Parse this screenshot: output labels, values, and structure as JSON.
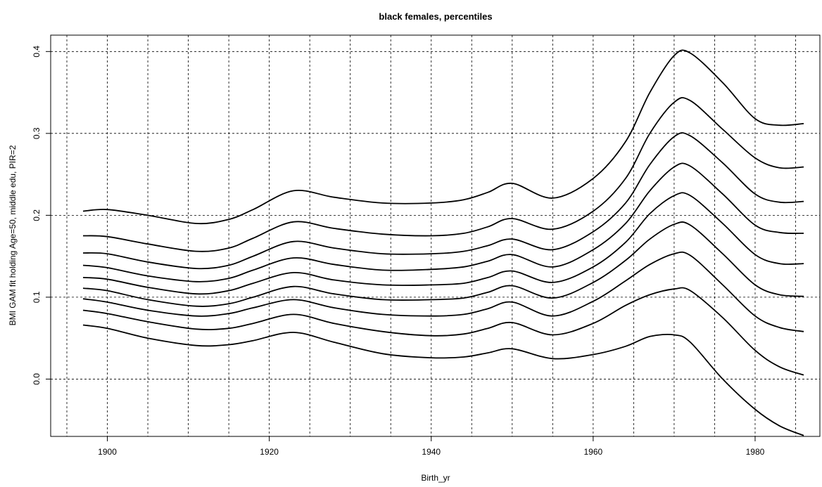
{
  "chart_data": {
    "type": "line",
    "title": "black females, percentiles",
    "xlabel": "Birth_yr",
    "ylabel": "BMI GAM fit holding Age=50, middle edu, PIR=2",
    "xlim": [
      1893,
      1988
    ],
    "ylim": [
      -0.07,
      0.42
    ],
    "x_ticks": [
      1900,
      1920,
      1940,
      1960,
      1980
    ],
    "y_ticks": [
      0.0,
      0.1,
      0.2,
      0.3,
      0.4
    ],
    "x_tick_labels": [
      "1900",
      "1920",
      "1940",
      "1960",
      "1980"
    ],
    "y_tick_labels": [
      "0.0",
      "0.1",
      "0.2",
      "0.3",
      "0.4"
    ],
    "x_grid": [
      1895,
      1900,
      1905,
      1910,
      1915,
      1920,
      1925,
      1930,
      1935,
      1940,
      1945,
      1950,
      1955,
      1960,
      1965,
      1970,
      1975,
      1980,
      1985
    ],
    "y_grid": [
      0.0,
      0.1,
      0.2,
      0.3,
      0.4
    ],
    "grid": true,
    "legend": "none",
    "x": [
      1897,
      1900,
      1905,
      1911,
      1915,
      1918,
      1923,
      1928,
      1934,
      1940,
      1944,
      1947,
      1950,
      1955,
      1960,
      1964,
      1967,
      1970,
      1972,
      1976,
      1980,
      1983,
      1986
    ],
    "series": [
      {
        "values": [
          0.205,
          0.207,
          0.2,
          0.19,
          0.195,
          0.207,
          0.23,
          0.222,
          0.215,
          0.215,
          0.219,
          0.228,
          0.239,
          0.221,
          0.245,
          0.29,
          0.35,
          0.395,
          0.398,
          0.362,
          0.318,
          0.31,
          0.312
        ]
      },
      {
        "values": [
          0.175,
          0.174,
          0.165,
          0.156,
          0.16,
          0.172,
          0.192,
          0.184,
          0.177,
          0.175,
          0.178,
          0.186,
          0.196,
          0.183,
          0.205,
          0.245,
          0.3,
          0.338,
          0.34,
          0.305,
          0.27,
          0.258,
          0.259
        ]
      },
      {
        "values": [
          0.154,
          0.153,
          0.143,
          0.135,
          0.139,
          0.15,
          0.168,
          0.16,
          0.153,
          0.153,
          0.156,
          0.163,
          0.171,
          0.158,
          0.18,
          0.215,
          0.262,
          0.296,
          0.297,
          0.264,
          0.226,
          0.216,
          0.217
        ]
      },
      {
        "values": [
          0.139,
          0.136,
          0.126,
          0.119,
          0.123,
          0.133,
          0.148,
          0.14,
          0.133,
          0.134,
          0.137,
          0.144,
          0.152,
          0.137,
          0.158,
          0.19,
          0.23,
          0.259,
          0.26,
          0.226,
          0.188,
          0.179,
          0.178
        ]
      },
      {
        "values": [
          0.124,
          0.122,
          0.112,
          0.104,
          0.108,
          0.117,
          0.13,
          0.121,
          0.115,
          0.115,
          0.117,
          0.124,
          0.132,
          0.118,
          0.137,
          0.167,
          0.202,
          0.224,
          0.224,
          0.19,
          0.152,
          0.141,
          0.141
        ]
      },
      {
        "values": [
          0.111,
          0.108,
          0.097,
          0.089,
          0.092,
          0.1,
          0.113,
          0.104,
          0.097,
          0.097,
          0.099,
          0.106,
          0.114,
          0.099,
          0.118,
          0.145,
          0.171,
          0.189,
          0.188,
          0.153,
          0.115,
          0.103,
          0.101
        ]
      },
      {
        "values": [
          0.098,
          0.094,
          0.084,
          0.077,
          0.08,
          0.087,
          0.097,
          0.087,
          0.079,
          0.077,
          0.079,
          0.086,
          0.094,
          0.077,
          0.095,
          0.12,
          0.14,
          0.153,
          0.151,
          0.115,
          0.077,
          0.063,
          0.058
        ]
      },
      {
        "values": [
          0.084,
          0.08,
          0.07,
          0.061,
          0.062,
          0.068,
          0.079,
          0.068,
          0.058,
          0.053,
          0.055,
          0.062,
          0.069,
          0.054,
          0.068,
          0.09,
          0.103,
          0.11,
          0.108,
          0.075,
          0.035,
          0.015,
          0.005
        ]
      },
      {
        "values": [
          0.066,
          0.062,
          0.05,
          0.041,
          0.042,
          0.047,
          0.057,
          0.045,
          0.031,
          0.026,
          0.027,
          0.032,
          0.037,
          0.025,
          0.03,
          0.04,
          0.052,
          0.054,
          0.045,
          0.0,
          -0.037,
          -0.057,
          -0.069
        ]
      }
    ]
  }
}
